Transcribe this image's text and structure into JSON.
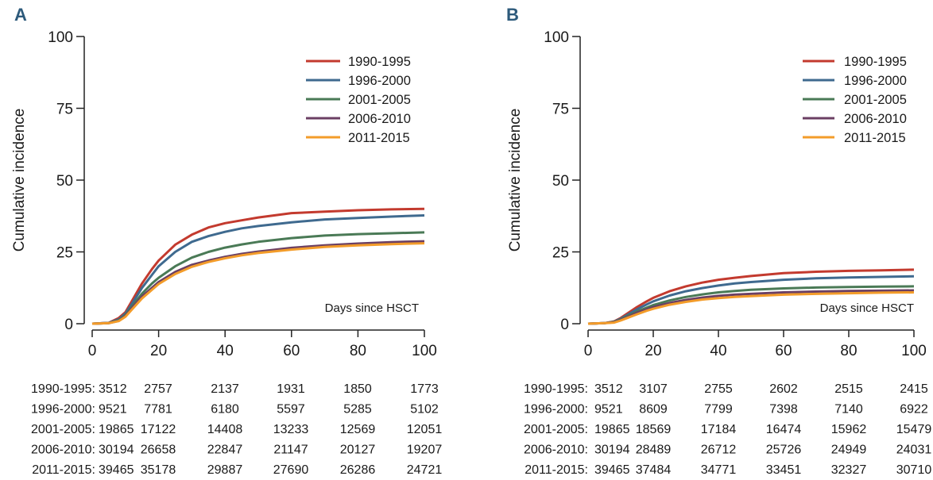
{
  "chart_data": [
    {
      "type": "line",
      "panel": "A",
      "ylabel": "Cumulative incidence",
      "annotation": "Days since HSCT",
      "xlim": [
        0,
        100
      ],
      "ylim": [
        0,
        100
      ],
      "xticks": [
        "0",
        "20",
        "40",
        "60",
        "80",
        "100"
      ],
      "yticks": [
        "0",
        "25",
        "50",
        "75",
        "100"
      ],
      "legend_position": "top-right",
      "series": [
        {
          "name": "1990-1995",
          "color": "#c33a2e",
          "x": [
            0,
            5,
            8,
            10,
            12,
            15,
            18,
            20,
            25,
            30,
            35,
            40,
            45,
            50,
            60,
            70,
            80,
            90,
            100
          ],
          "y": [
            0,
            0.3,
            2,
            4,
            8,
            14,
            19,
            22,
            27.5,
            31,
            33.5,
            35,
            36,
            37,
            38.5,
            39,
            39.5,
            39.8,
            40
          ]
        },
        {
          "name": "1996-2000",
          "color": "#3f6a8f",
          "x": [
            0,
            5,
            8,
            10,
            12,
            15,
            18,
            20,
            25,
            30,
            35,
            40,
            45,
            50,
            60,
            70,
            80,
            90,
            100
          ],
          "y": [
            0,
            0.3,
            1.5,
            3.5,
            7,
            12.5,
            17,
            20,
            25,
            28.5,
            30.5,
            32,
            33.2,
            34,
            35.3,
            36.3,
            36.8,
            37.3,
            37.7
          ]
        },
        {
          "name": "2001-2005",
          "color": "#4a7a56",
          "x": [
            0,
            5,
            8,
            10,
            12,
            15,
            18,
            20,
            25,
            30,
            35,
            40,
            45,
            50,
            60,
            70,
            80,
            90,
            100
          ],
          "y": [
            0,
            0.2,
            1.2,
            3,
            6,
            10.5,
            14,
            16,
            20,
            23,
            25,
            26.5,
            27.6,
            28.5,
            29.8,
            30.7,
            31.2,
            31.5,
            31.8
          ]
        },
        {
          "name": "2006-2010",
          "color": "#6b3f63",
          "x": [
            0,
            5,
            8,
            10,
            12,
            15,
            18,
            20,
            25,
            30,
            35,
            40,
            45,
            50,
            60,
            70,
            80,
            90,
            100
          ],
          "y": [
            0,
            0.2,
            1,
            2.7,
            5.5,
            9.5,
            12.5,
            14.5,
            18,
            20.5,
            22,
            23.3,
            24.3,
            25.1,
            26.4,
            27.3,
            27.9,
            28.4,
            28.7
          ]
        },
        {
          "name": "2011-2015",
          "color": "#f39c2a",
          "x": [
            0,
            5,
            8,
            10,
            12,
            15,
            18,
            20,
            25,
            30,
            35,
            40,
            45,
            50,
            60,
            70,
            80,
            90,
            100
          ],
          "y": [
            0,
            0.2,
            0.9,
            2.4,
            5,
            8.8,
            11.8,
            13.8,
            17.3,
            19.8,
            21.5,
            22.8,
            23.8,
            24.6,
            25.8,
            26.7,
            27.3,
            27.7,
            28
          ]
        }
      ],
      "risk_table": {
        "rows": [
          {
            "label": "1990-1995:",
            "values": [
              "3512",
              "2757",
              "2137",
              "1931",
              "1850",
              "1773"
            ]
          },
          {
            "label": "1996-2000:",
            "values": [
              "9521",
              "7781",
              "6180",
              "5597",
              "5285",
              "5102"
            ]
          },
          {
            "label": "2001-2005:",
            "values": [
              "19865",
              "17122",
              "14408",
              "13233",
              "12569",
              "12051"
            ]
          },
          {
            "label": "2006-2010:",
            "values": [
              "30194",
              "26658",
              "22847",
              "21147",
              "20127",
              "19207"
            ]
          },
          {
            "label": "2011-2015:",
            "values": [
              "39465",
              "35178",
              "29887",
              "27690",
              "26286",
              "24721"
            ]
          }
        ]
      }
    },
    {
      "type": "line",
      "panel": "B",
      "ylabel": "Cumulative incidence",
      "annotation": "Days since HSCT",
      "xlim": [
        0,
        100
      ],
      "ylim": [
        0,
        100
      ],
      "xticks": [
        "0",
        "20",
        "40",
        "60",
        "80",
        "100"
      ],
      "yticks": [
        "0",
        "25",
        "50",
        "75",
        "100"
      ],
      "legend_position": "top-right",
      "series": [
        {
          "name": "1990-1995",
          "color": "#c33a2e",
          "x": [
            0,
            5,
            8,
            10,
            12,
            15,
            18,
            20,
            25,
            30,
            35,
            40,
            45,
            50,
            60,
            70,
            80,
            90,
            100
          ],
          "y": [
            0,
            0.2,
            0.8,
            2,
            3.5,
            5.8,
            7.8,
            9,
            11.3,
            13,
            14.3,
            15.3,
            16,
            16.6,
            17.6,
            18.1,
            18.4,
            18.6,
            18.8
          ]
        },
        {
          "name": "1996-2000",
          "color": "#3f6a8f",
          "x": [
            0,
            5,
            8,
            10,
            12,
            15,
            18,
            20,
            25,
            30,
            35,
            40,
            45,
            50,
            60,
            70,
            80,
            90,
            100
          ],
          "y": [
            0,
            0.2,
            0.7,
            1.7,
            3,
            5,
            6.7,
            7.8,
            9.8,
            11.3,
            12.4,
            13.3,
            14,
            14.5,
            15.3,
            15.8,
            16.1,
            16.3,
            16.5
          ]
        },
        {
          "name": "2001-2005",
          "color": "#4a7a56",
          "x": [
            0,
            5,
            8,
            10,
            12,
            15,
            18,
            20,
            25,
            30,
            35,
            40,
            45,
            50,
            60,
            70,
            80,
            90,
            100
          ],
          "y": [
            0,
            0.2,
            0.6,
            1.5,
            2.6,
            4.2,
            5.6,
            6.5,
            8.1,
            9.3,
            10.2,
            10.9,
            11.4,
            11.8,
            12.3,
            12.6,
            12.8,
            12.9,
            13
          ]
        },
        {
          "name": "2006-2010",
          "color": "#6b3f63",
          "x": [
            0,
            5,
            8,
            10,
            12,
            15,
            18,
            20,
            25,
            30,
            35,
            40,
            45,
            50,
            60,
            70,
            80,
            90,
            100
          ],
          "y": [
            0,
            0.2,
            0.5,
            1.3,
            2.3,
            3.8,
            5,
            5.8,
            7.2,
            8.3,
            9.1,
            9.7,
            10.1,
            10.4,
            10.9,
            11.2,
            11.4,
            11.5,
            11.6
          ]
        },
        {
          "name": "2011-2015",
          "color": "#f39c2a",
          "x": [
            0,
            5,
            8,
            10,
            12,
            15,
            18,
            20,
            25,
            30,
            35,
            40,
            45,
            50,
            60,
            70,
            80,
            90,
            100
          ],
          "y": [
            0,
            0.2,
            0.4,
            1.1,
            2,
            3.3,
            4.5,
            5.2,
            6.6,
            7.6,
            8.4,
            8.9,
            9.3,
            9.6,
            10.1,
            10.4,
            10.6,
            10.8,
            10.9
          ]
        }
      ],
      "risk_table": {
        "rows": [
          {
            "label": "1990-1995:",
            "values": [
              "3512",
              "3107",
              "2755",
              "2602",
              "2515",
              "2415"
            ]
          },
          {
            "label": "1996-2000:",
            "values": [
              "9521",
              "8609",
              "7799",
              "7398",
              "7140",
              "6922"
            ]
          },
          {
            "label": "2001-2005:",
            "values": [
              "19865",
              "18569",
              "17184",
              "16474",
              "15962",
              "15479"
            ]
          },
          {
            "label": "2006-2010:",
            "values": [
              "30194",
              "28489",
              "26712",
              "25726",
              "24949",
              "24031"
            ]
          },
          {
            "label": "2011-2015:",
            "values": [
              "39465",
              "37484",
              "34771",
              "33451",
              "32327",
              "30710"
            ]
          }
        ]
      }
    }
  ]
}
